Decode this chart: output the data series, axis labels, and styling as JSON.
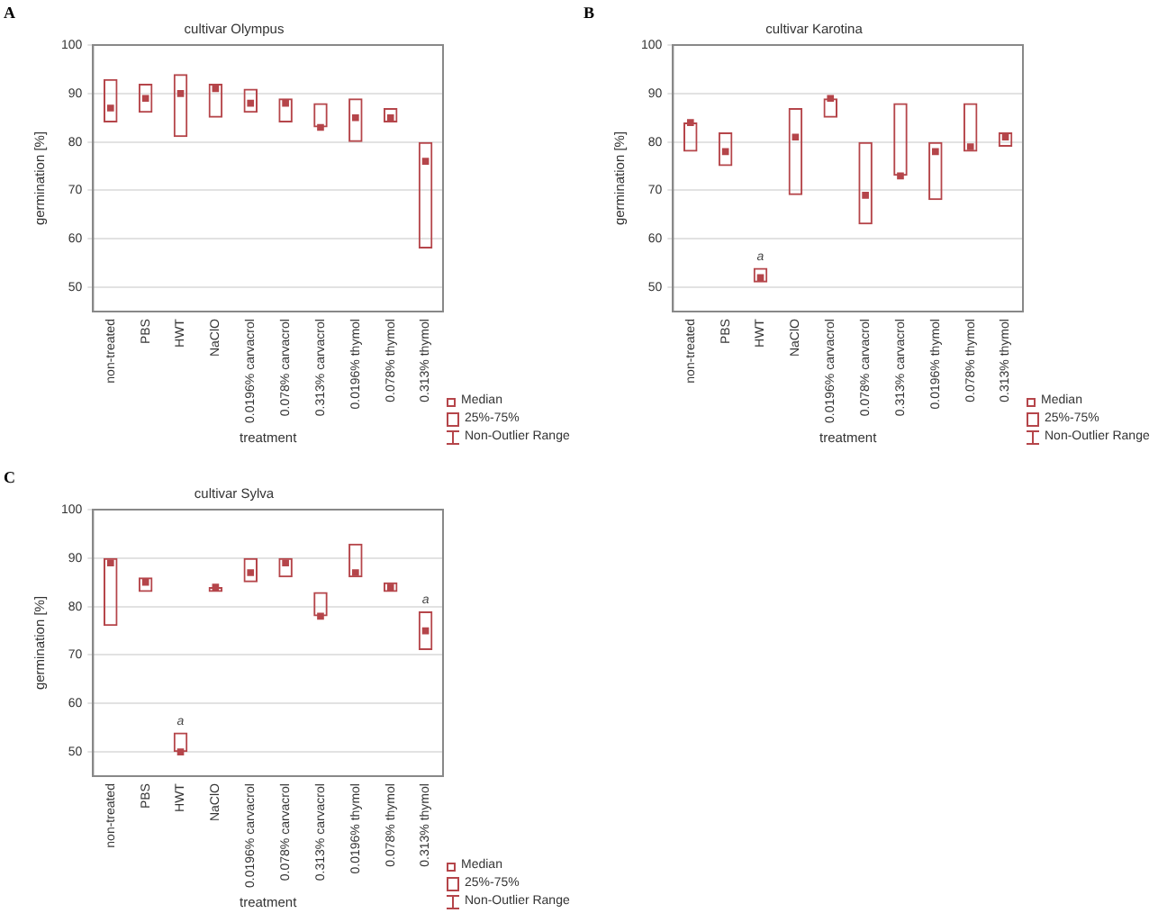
{
  "chart_data": [
    {
      "type": "box",
      "title": "cultivar Olympus",
      "xlabel": "treatment",
      "ylabel": "germination [%]",
      "color": "#b5454a",
      "ylim": [
        45,
        100
      ],
      "yticks": [
        50,
        60,
        70,
        80,
        90,
        100
      ],
      "grid": "y",
      "categories": [
        "non-treated",
        "PBS",
        "HWT",
        "NaClO",
        "0.0196% carvacrol",
        "0.078% carvacrol",
        "0.313% carvacrol",
        "0.0196% thymol",
        "0.078% thymol",
        "0.313% thymol"
      ],
      "boxes": [
        {
          "low": 84,
          "q1": 84,
          "median": 87,
          "q3": 93,
          "high": 93
        },
        {
          "low": 86,
          "q1": 86,
          "median": 89,
          "q3": 92,
          "high": 92
        },
        {
          "low": 81,
          "q1": 81,
          "median": 90,
          "q3": 94,
          "high": 94
        },
        {
          "low": 85,
          "q1": 85,
          "median": 91,
          "q3": 92,
          "high": 92
        },
        {
          "low": 86,
          "q1": 86,
          "median": 88,
          "q3": 91,
          "high": 91
        },
        {
          "low": 84,
          "q1": 84,
          "median": 88,
          "q3": 89,
          "high": 89
        },
        {
          "low": 83,
          "q1": 83,
          "median": 83,
          "q3": 88,
          "high": 88
        },
        {
          "low": 80,
          "q1": 80,
          "median": 85,
          "q3": 89,
          "high": 89
        },
        {
          "low": 84,
          "q1": 84,
          "median": 85,
          "q3": 87,
          "high": 87
        },
        {
          "low": 58,
          "q1": 58,
          "median": 76,
          "q3": 80,
          "high": 80
        }
      ],
      "annotations": [
        "A",
        "Median",
        "25%-75%",
        "Non-Outlier Range"
      ]
    },
    {
      "type": "box",
      "title": "cultivar Karotina",
      "xlabel": "treatment",
      "ylabel": "germination [%]",
      "color": "#b5454a",
      "ylim": [
        45,
        100
      ],
      "yticks": [
        50,
        60,
        70,
        80,
        90,
        100
      ],
      "grid": "y",
      "categories": [
        "non-treated",
        "PBS",
        "HWT",
        "NaClO",
        "0.0196% carvacrol",
        "0.078% carvacrol",
        "0.313% carvacrol",
        "0.0196% thymol",
        "0.078% thymol",
        "0.313% thymol"
      ],
      "boxes": [
        {
          "low": 78,
          "q1": 78,
          "median": 84,
          "q3": 84,
          "high": 84
        },
        {
          "low": 75,
          "q1": 75,
          "median": 78,
          "q3": 82,
          "high": 82
        },
        {
          "low": 51,
          "q1": 51,
          "median": 52,
          "q3": 54,
          "high": 54
        },
        {
          "low": 69,
          "q1": 69,
          "median": 81,
          "q3": 87,
          "high": 87
        },
        {
          "low": 85,
          "q1": 85,
          "median": 89,
          "q3": 89,
          "high": 89
        },
        {
          "low": 63,
          "q1": 63,
          "median": 69,
          "q3": 80,
          "high": 80
        },
        {
          "low": 73,
          "q1": 73,
          "median": 73,
          "q3": 88,
          "high": 88
        },
        {
          "low": 68,
          "q1": 68,
          "median": 78,
          "q3": 80,
          "high": 80
        },
        {
          "low": 78,
          "q1": 78,
          "median": 79,
          "q3": 88,
          "high": 88
        },
        {
          "low": 79,
          "q1": 79,
          "median": 81,
          "q3": 82,
          "high": 82
        }
      ],
      "annotations": [
        "B",
        "Median",
        "25%-75%",
        "Non-Outlier Range",
        {
          "text": "a",
          "x": "HWT",
          "y": 54
        }
      ]
    },
    {
      "type": "box",
      "title": "cultivar Sylva",
      "xlabel": "treatment",
      "ylabel": "germination [%]",
      "color": "#b5454a",
      "ylim": [
        45,
        100
      ],
      "yticks": [
        50,
        60,
        70,
        80,
        90,
        100
      ],
      "grid": "y",
      "categories": [
        "non-treated",
        "PBS",
        "HWT",
        "NaClO",
        "0.0196% carvacrol",
        "0.078% carvacrol",
        "0.313% carvacrol",
        "0.0196% thymol",
        "0.078% thymol",
        "0.313% thymol"
      ],
      "boxes": [
        {
          "low": 76,
          "q1": 76,
          "median": 89,
          "q3": 90,
          "high": 90
        },
        {
          "low": 83,
          "q1": 83,
          "median": 85,
          "q3": 86,
          "high": 86
        },
        {
          "low": 50,
          "q1": 50,
          "median": 50,
          "q3": 54,
          "high": 54
        },
        {
          "low": 83,
          "q1": 83,
          "median": 84,
          "q3": 84,
          "high": 84
        },
        {
          "low": 85,
          "q1": 85,
          "median": 87,
          "q3": 90,
          "high": 90
        },
        {
          "low": 86,
          "q1": 86,
          "median": 89,
          "q3": 90,
          "high": 90
        },
        {
          "low": 78,
          "q1": 78,
          "median": 78,
          "q3": 83,
          "high": 83
        },
        {
          "low": 86,
          "q1": 86,
          "median": 87,
          "q3": 93,
          "high": 93
        },
        {
          "low": 83,
          "q1": 83,
          "median": 84,
          "q3": 85,
          "high": 85
        },
        {
          "low": 71,
          "q1": 71,
          "median": 75,
          "q3": 79,
          "high": 79
        }
      ],
      "annotations": [
        "C",
        "Median",
        "25%-75%",
        "Non-Outlier Range",
        {
          "text": "a",
          "x": "HWT",
          "y": 54
        },
        {
          "text": "a",
          "x": "0.313% thymol",
          "y": 79
        }
      ]
    }
  ]
}
